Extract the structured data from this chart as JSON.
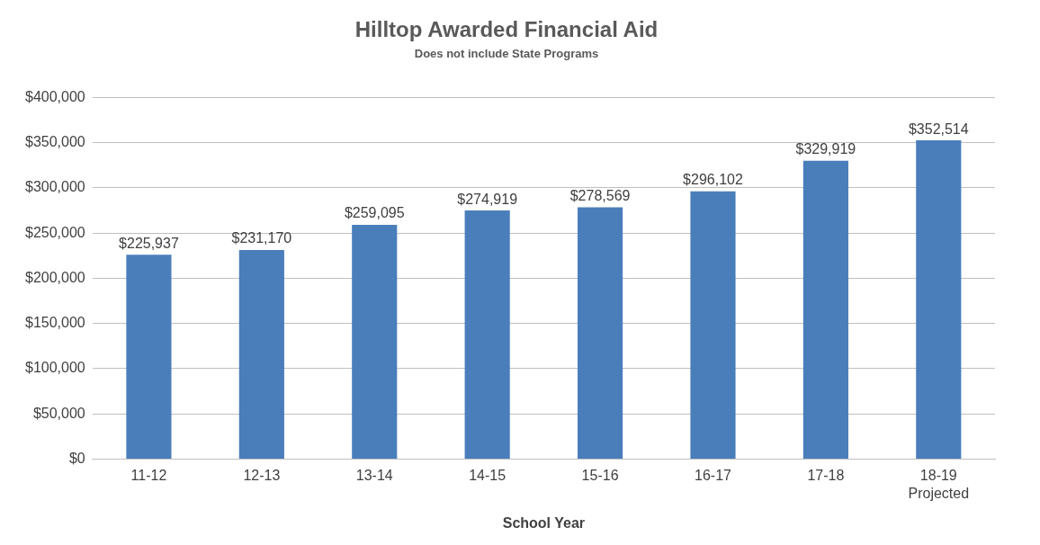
{
  "chart_data": {
    "type": "bar",
    "title": "Hilltop Awarded Financial Aid",
    "subtitle": "Does not include State Programs",
    "xlabel": "School Year",
    "categories": [
      "11-12",
      "12-13",
      "13-14",
      "14-15",
      "15-16",
      "16-17",
      "17-18",
      "18-19\nProjected"
    ],
    "values": [
      225937,
      231170,
      259095,
      274919,
      278569,
      296102,
      329919,
      352514
    ],
    "value_labels": [
      "$225,937",
      "$231,170",
      "$259,095",
      "$274,919",
      "$278,569",
      "$296,102",
      "$329,919",
      "$352,514"
    ],
    "color": "#4a7ebb",
    "ylim": [
      0,
      400000
    ],
    "yticks": [
      {
        "value": 0,
        "label": "$0"
      },
      {
        "value": 50000,
        "label": "$50,000"
      },
      {
        "value": 100000,
        "label": "$100,000"
      },
      {
        "value": 150000,
        "label": "$150,000"
      },
      {
        "value": 200000,
        "label": "$200,000"
      },
      {
        "value": 250000,
        "label": "$250,000"
      },
      {
        "value": 300000,
        "label": "$300,000"
      },
      {
        "value": 350000,
        "label": "$350,000"
      },
      {
        "value": 400000,
        "label": "$400,000"
      }
    ],
    "grid": "y",
    "legend": false
  }
}
